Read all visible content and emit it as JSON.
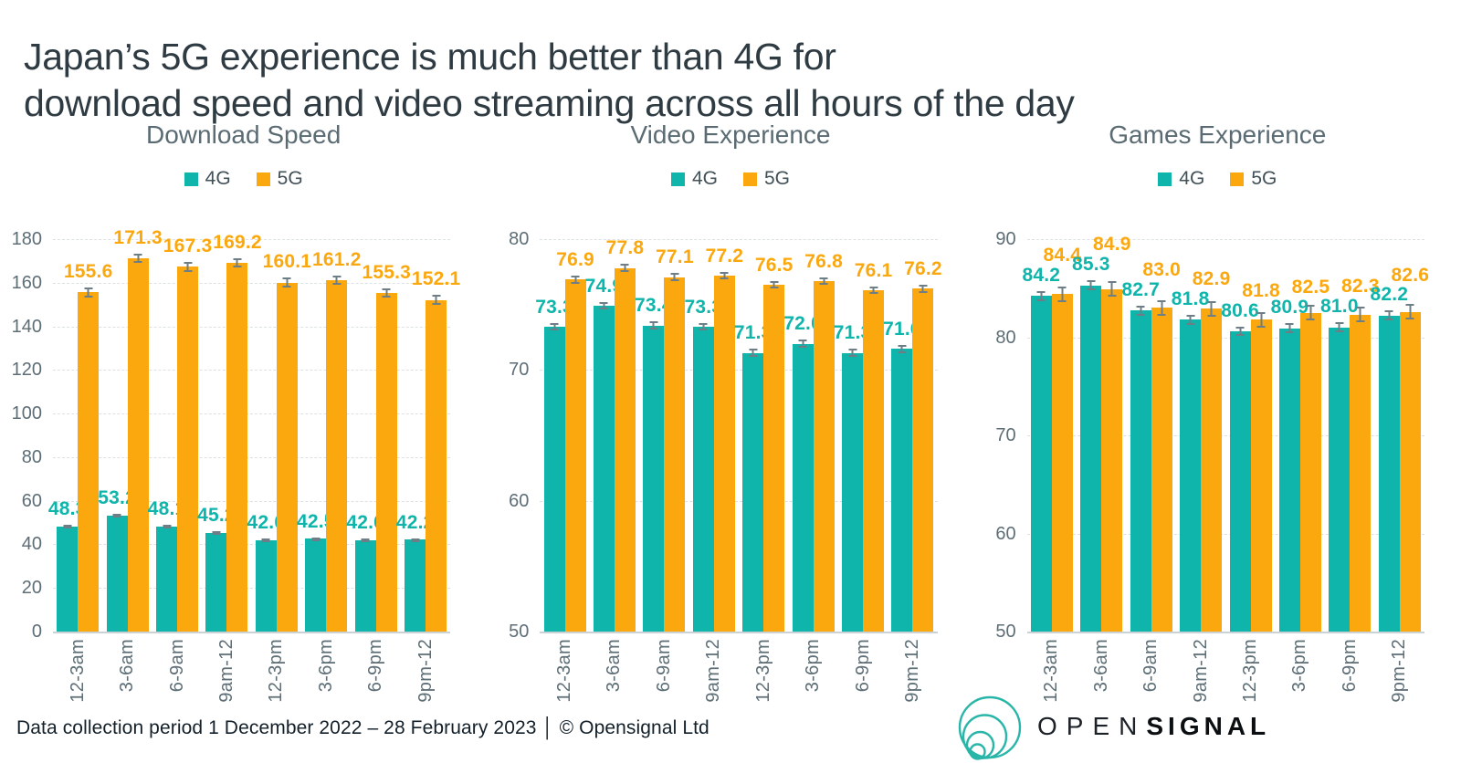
{
  "header": {
    "title_lines": [
      "Japan’s 5G experience is much better than 4G for",
      "download speed and video streaming across all hours of the day"
    ]
  },
  "footer": {
    "text": "Data collection period 1 December 2022 – 28 February 2023 │ © Opensignal Ltd"
  },
  "logo": {
    "open": "OPEN",
    "signal": "SIGNAL"
  },
  "colors": {
    "teal_4g": "#0FB5AB",
    "orange_5g": "#FBA80F",
    "page_title": "#2F3B42",
    "chart_title": "#5A6B73",
    "axis_text": "#5D6E76",
    "gridline": "#DCE1E3",
    "error_bar": "#6E7E86"
  },
  "chart_data": [
    {
      "type": "bar",
      "title": "Download Speed",
      "categories": [
        "12-3am",
        "3-6am",
        "6-9am",
        "9am-12",
        "12-3pm",
        "3-6pm",
        "6-9pm",
        "9pm-12"
      ],
      "series": [
        {
          "name": "4G",
          "color": "#0FB5AB",
          "values": [
            48.3,
            53.2,
            48.1,
            45.2,
            42.0,
            42.5,
            42.0,
            42.2
          ],
          "error_estimate": 0.7
        },
        {
          "name": "5G",
          "color": "#FBA80F",
          "values": [
            155.6,
            171.3,
            167.3,
            169.2,
            160.1,
            161.2,
            155.3,
            152.1
          ],
          "error_estimate": 2.2
        }
      ],
      "ylim": [
        0,
        180
      ],
      "ytick_step": 20,
      "grid": "dashed-horizontal",
      "legend_position": "top",
      "value_labels": "one-decimal"
    },
    {
      "type": "bar",
      "title": "Video Experience",
      "categories": [
        "12-3am",
        "3-6am",
        "6-9am",
        "9am-12",
        "12-3pm",
        "3-6pm",
        "6-9pm",
        "9pm-12"
      ],
      "series": [
        {
          "name": "4G",
          "color": "#0FB5AB",
          "values": [
            73.3,
            74.9,
            73.4,
            73.3,
            71.3,
            72.0,
            71.3,
            71.6
          ],
          "error_estimate": 0.3
        },
        {
          "name": "5G",
          "color": "#FBA80F",
          "values": [
            76.9,
            77.8,
            77.1,
            77.2,
            76.5,
            76.8,
            76.1,
            76.2
          ],
          "error_estimate": 0.3
        }
      ],
      "ylim": [
        50,
        80
      ],
      "ytick_step": 10,
      "grid": "dashed-horizontal",
      "legend_position": "top",
      "value_labels": "one-decimal"
    },
    {
      "type": "bar",
      "title": "Games Experience",
      "categories": [
        "12-3am",
        "3-6am",
        "6-9am",
        "9am-12",
        "12-3pm",
        "3-6pm",
        "6-9pm",
        "9pm-12"
      ],
      "series": [
        {
          "name": "4G",
          "color": "#0FB5AB",
          "values": [
            84.2,
            85.3,
            82.7,
            81.8,
            80.6,
            80.9,
            81.0,
            82.2
          ],
          "error_estimate": 0.5
        },
        {
          "name": "5G",
          "color": "#FBA80F",
          "values": [
            84.4,
            84.9,
            83.0,
            82.9,
            81.8,
            82.5,
            82.3,
            82.6
          ],
          "error_estimate": 0.8
        }
      ],
      "ylim": [
        50,
        90
      ],
      "ytick_step": 10,
      "grid": "dashed-horizontal",
      "legend_position": "top",
      "value_labels": "one-decimal"
    }
  ]
}
